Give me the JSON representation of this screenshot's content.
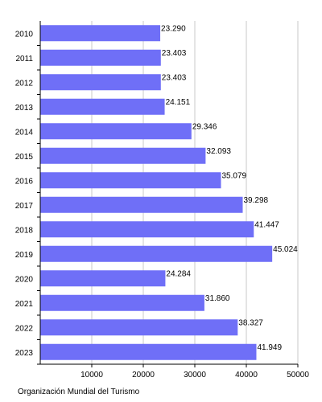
{
  "chart_data": {
    "type": "bar",
    "orientation": "horizontal",
    "categories": [
      "2010",
      "2011",
      "2012",
      "2013",
      "2014",
      "2015",
      "2016",
      "2017",
      "2018",
      "2019",
      "2020",
      "2021",
      "2022",
      "2023"
    ],
    "values": [
      23290,
      23403,
      23403,
      24151,
      29346,
      32093,
      35079,
      39298,
      41447,
      45024,
      24284,
      31860,
      38327,
      41949
    ],
    "value_labels": [
      "23.290",
      "23.403",
      "23.403",
      "24.151",
      "29.346",
      "32.093",
      "35.079",
      "39.298",
      "41.447",
      "45.024",
      "24.284",
      "31.860",
      "38.327",
      "41.949"
    ],
    "xticks": [
      10000,
      20000,
      30000,
      40000,
      50000
    ],
    "xlim": [
      0,
      50000
    ],
    "grid": "vertical",
    "colors": {
      "bar": "#6f6ff7",
      "grid": "#c8c8c8",
      "axis": "#000000"
    }
  },
  "footer": {
    "source": "Organización Mundial del Turismo"
  }
}
